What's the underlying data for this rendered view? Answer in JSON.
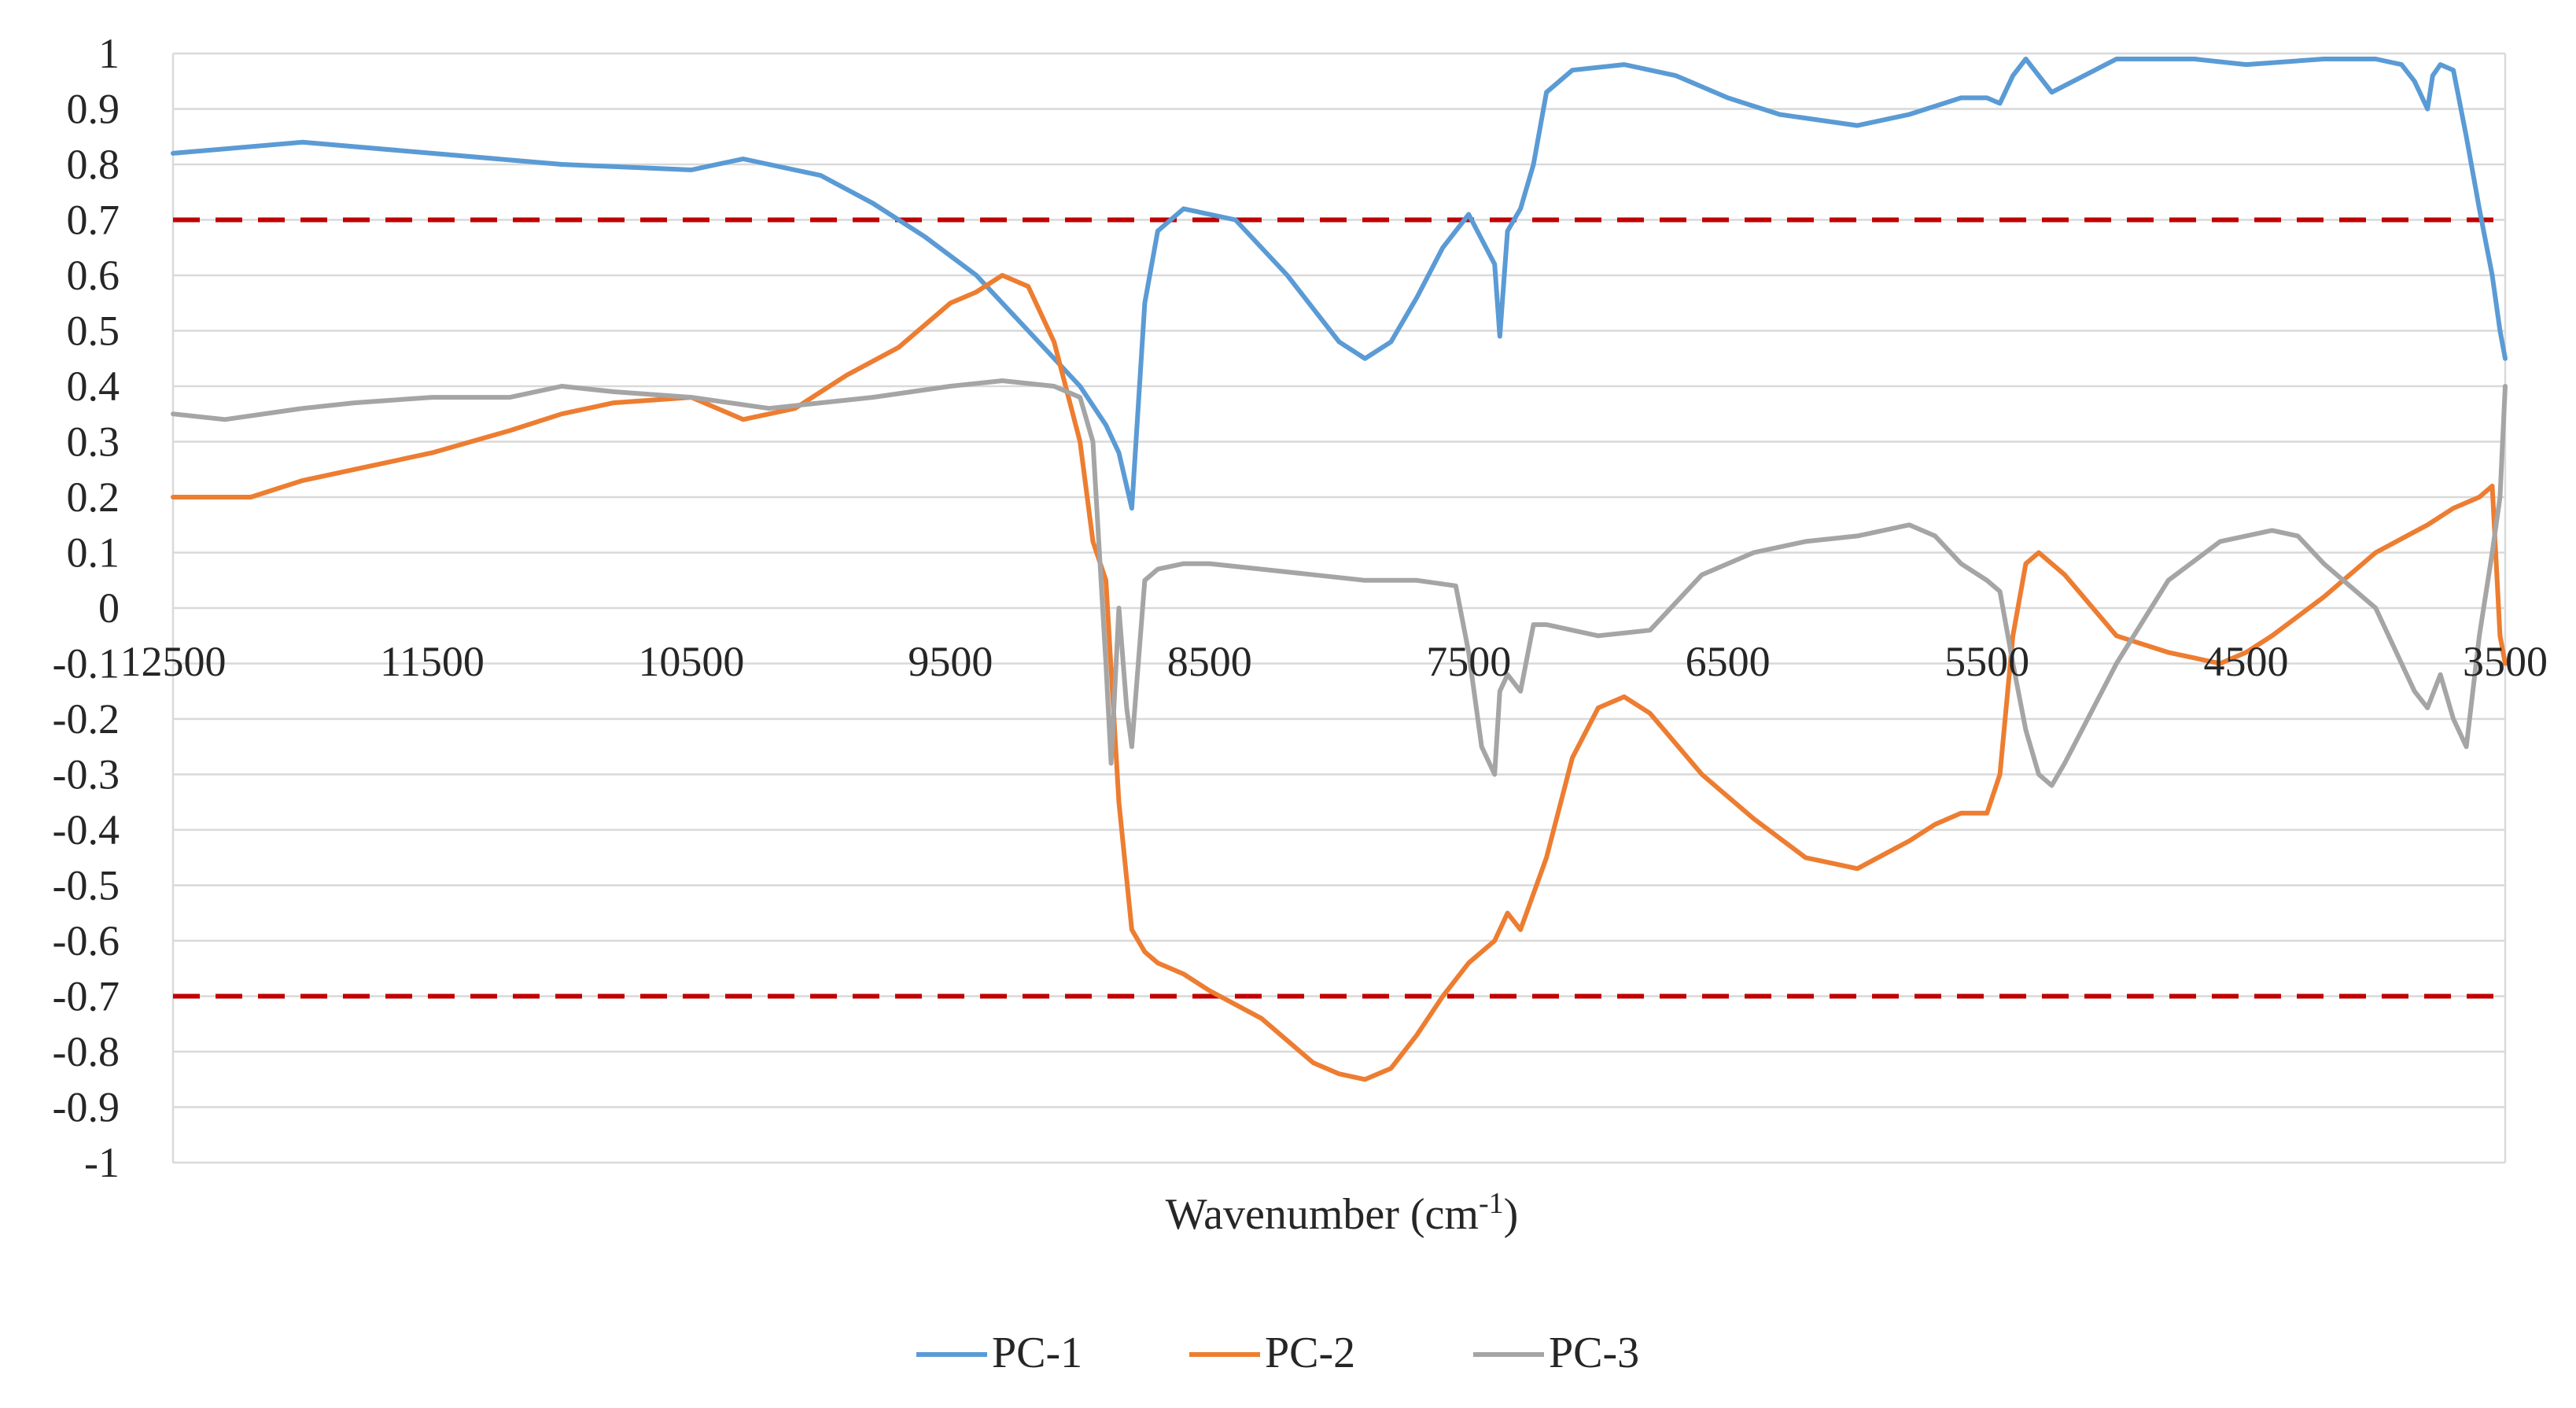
{
  "chart_data": {
    "type": "line",
    "title": "",
    "xlabel": "Wavenumber (cm",
    "xlabel_sup": "-1",
    "xlabel_close": ")",
    "ylabel": "",
    "xlim": [
      12500,
      3500
    ],
    "ylim": [
      -1,
      1
    ],
    "x_ticks": [
      12500,
      11500,
      10500,
      9500,
      8500,
      7500,
      6500,
      5500,
      4500,
      3500
    ],
    "y_ticks": [
      1,
      0.9,
      0.8,
      0.7,
      0.6,
      0.5,
      0.4,
      0.3,
      0.2,
      0.1,
      0,
      -0.1,
      -0.2,
      -0.3,
      -0.4,
      -0.5,
      -0.6,
      -0.7,
      -0.8,
      -0.9,
      -1
    ],
    "grid": true,
    "legend_position": "bottom",
    "threshold_lines": [
      {
        "y": 0.7,
        "color": "#c00000",
        "style": "dashed"
      },
      {
        "y": -0.7,
        "color": "#c00000",
        "style": "dashed"
      }
    ],
    "series": [
      {
        "name": "PC-1",
        "color": "#5b9bd5",
        "x": [
          12500,
          12000,
          11500,
          11000,
          10500,
          10300,
          10000,
          9800,
          9600,
          9400,
          9200,
          9000,
          8900,
          8850,
          8800,
          8750,
          8700,
          8600,
          8400,
          8200,
          8000,
          7900,
          7800,
          7700,
          7600,
          7500,
          7400,
          7380,
          7350,
          7300,
          7250,
          7200,
          7100,
          6900,
          6700,
          6500,
          6300,
          6000,
          5800,
          5600,
          5500,
          5450,
          5400,
          5350,
          5300,
          5250,
          5000,
          4700,
          4500,
          4200,
          4000,
          3900,
          3850,
          3800,
          3780,
          3750,
          3700,
          3650,
          3600,
          3550,
          3520,
          3500
        ],
        "y": [
          0.82,
          0.84,
          0.82,
          0.8,
          0.79,
          0.81,
          0.78,
          0.73,
          0.67,
          0.6,
          0.5,
          0.4,
          0.33,
          0.28,
          0.18,
          0.55,
          0.68,
          0.72,
          0.7,
          0.6,
          0.48,
          0.45,
          0.48,
          0.56,
          0.65,
          0.71,
          0.62,
          0.49,
          0.68,
          0.72,
          0.8,
          0.93,
          0.97,
          0.98,
          0.96,
          0.92,
          0.89,
          0.87,
          0.89,
          0.92,
          0.92,
          0.91,
          0.96,
          0.99,
          0.96,
          0.93,
          0.99,
          0.99,
          0.98,
          0.99,
          0.99,
          0.98,
          0.95,
          0.9,
          0.96,
          0.98,
          0.97,
          0.85,
          0.72,
          0.6,
          0.5,
          0.45
        ]
      },
      {
        "name": "PC-2",
        "color": "#ed7d31",
        "x": [
          12500,
          12200,
          12000,
          11800,
          11500,
          11200,
          11000,
          10800,
          10500,
          10300,
          10100,
          9900,
          9700,
          9500,
          9400,
          9300,
          9200,
          9100,
          9000,
          8950,
          8900,
          8850,
          8800,
          8750,
          8700,
          8600,
          8500,
          8300,
          8100,
          8000,
          7900,
          7800,
          7700,
          7600,
          7500,
          7400,
          7350,
          7300,
          7200,
          7100,
          7000,
          6900,
          6800,
          6600,
          6400,
          6200,
          6000,
          5800,
          5700,
          5600,
          5500,
          5450,
          5400,
          5350,
          5300,
          5200,
          5000,
          4800,
          4600,
          4500,
          4400,
          4200,
          4000,
          3800,
          3700,
          3600,
          3550,
          3520,
          3500
        ],
        "y": [
          0.2,
          0.2,
          0.23,
          0.25,
          0.28,
          0.32,
          0.35,
          0.37,
          0.38,
          0.34,
          0.36,
          0.42,
          0.47,
          0.55,
          0.57,
          0.6,
          0.58,
          0.48,
          0.3,
          0.12,
          0.05,
          -0.35,
          -0.58,
          -0.62,
          -0.64,
          -0.66,
          -0.69,
          -0.74,
          -0.82,
          -0.84,
          -0.85,
          -0.83,
          -0.77,
          -0.7,
          -0.64,
          -0.6,
          -0.55,
          -0.58,
          -0.45,
          -0.27,
          -0.18,
          -0.16,
          -0.19,
          -0.3,
          -0.38,
          -0.45,
          -0.47,
          -0.42,
          -0.39,
          -0.37,
          -0.37,
          -0.3,
          -0.05,
          0.08,
          0.1,
          0.06,
          -0.05,
          -0.08,
          -0.1,
          -0.08,
          -0.05,
          0.02,
          0.1,
          0.15,
          0.18,
          0.2,
          0.22,
          -0.05,
          -0.1
        ]
      },
      {
        "name": "PC-3",
        "color": "#a5a5a5",
        "x": [
          12500,
          12300,
          12000,
          11800,
          11500,
          11200,
          11000,
          10800,
          10500,
          10200,
          10000,
          9800,
          9500,
          9300,
          9100,
          9000,
          8950,
          8900,
          8880,
          8850,
          8820,
          8800,
          8750,
          8700,
          8600,
          8500,
          8300,
          8100,
          7900,
          7700,
          7550,
          7500,
          7450,
          7400,
          7380,
          7350,
          7300,
          7250,
          7200,
          7000,
          6800,
          6600,
          6400,
          6200,
          6000,
          5800,
          5700,
          5600,
          5500,
          5450,
          5400,
          5350,
          5300,
          5250,
          5200,
          5000,
          4800,
          4600,
          4400,
          4300,
          4200,
          4000,
          3900,
          3850,
          3800,
          3750,
          3700,
          3650,
          3600,
          3550,
          3520,
          3500
        ],
        "y": [
          0.35,
          0.34,
          0.36,
          0.37,
          0.38,
          0.38,
          0.4,
          0.39,
          0.38,
          0.36,
          0.37,
          0.38,
          0.4,
          0.41,
          0.4,
          0.38,
          0.3,
          -0.1,
          -0.28,
          0.0,
          -0.18,
          -0.25,
          0.05,
          0.07,
          0.08,
          0.08,
          0.07,
          0.06,
          0.05,
          0.05,
          0.04,
          -0.08,
          -0.25,
          -0.3,
          -0.15,
          -0.12,
          -0.15,
          -0.03,
          -0.03,
          -0.05,
          -0.04,
          0.06,
          0.1,
          0.12,
          0.13,
          0.15,
          0.13,
          0.08,
          0.05,
          0.03,
          -0.1,
          -0.22,
          -0.3,
          -0.32,
          -0.28,
          -0.1,
          0.05,
          0.12,
          0.14,
          0.13,
          0.08,
          0.0,
          -0.1,
          -0.15,
          -0.18,
          -0.12,
          -0.2,
          -0.25,
          -0.05,
          0.1,
          0.2,
          0.4
        ]
      }
    ]
  }
}
